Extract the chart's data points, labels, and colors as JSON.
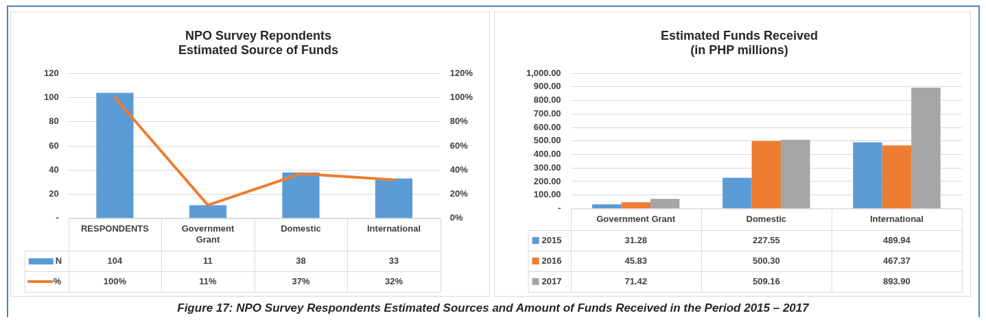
{
  "chart_data": [
    {
      "type": "bar",
      "title": "NPO Survey Repondents\nEstimated Source of Funds",
      "categories": [
        "RESPONDENTS",
        "Government Grant",
        "Domestic",
        "International"
      ],
      "series": [
        {
          "name": "N",
          "color": "#5b9bd5",
          "values": [
            104,
            11,
            38,
            33
          ],
          "value_labels": [
            "104",
            "11",
            "38",
            "33"
          ]
        },
        {
          "name": "%",
          "type": "line",
          "axis": "y2",
          "color": "#ed7d31",
          "values": [
            100,
            11,
            37,
            32
          ],
          "value_labels": [
            "100%",
            "11%",
            "37%",
            "32%"
          ]
        }
      ],
      "ylim": [
        0,
        120
      ],
      "yticks": [
        {
          "value": 0,
          "label": "-"
        },
        20,
        40,
        60,
        80,
        100,
        120
      ],
      "y2lim": [
        0,
        120
      ],
      "y2ticks": [
        {
          "value": 0,
          "label": "0%"
        },
        {
          "value": 20,
          "label": "20%"
        },
        {
          "value": 40,
          "label": "40%"
        },
        {
          "value": 60,
          "label": "60%"
        },
        {
          "value": 80,
          "label": "80%"
        },
        {
          "value": 100,
          "label": "100%"
        },
        {
          "value": 120,
          "label": "120%"
        }
      ],
      "grid": "y",
      "legend": "bottom",
      "marker": "none",
      "line_style": "solid",
      "annotations": [
        "Figure 17: NPO Survey Respondents Estimated Sources and Amount of Funds Received in the Period 2015 – 2017"
      ]
    },
    {
      "type": "bar",
      "title": "Estimated Funds Received\n(in PHP millions)",
      "categories": [
        "Government Grant",
        "Domestic",
        "International"
      ],
      "series": [
        {
          "name": "2015",
          "color": "#5b9bd5",
          "values": [
            31.28,
            227.55,
            489.94
          ],
          "value_labels": [
            "31.28",
            "227.55",
            "489.94"
          ]
        },
        {
          "name": "2016",
          "color": "#ed7d31",
          "values": [
            45.83,
            500.3,
            467.37
          ],
          "value_labels": [
            "45.83",
            "500.30",
            "467.37"
          ]
        },
        {
          "name": "2017",
          "color": "#a5a5a5",
          "values": [
            71.42,
            509.16,
            893.9
          ],
          "value_labels": [
            "71.42",
            "509.16",
            "893.90"
          ]
        }
      ],
      "ylim": [
        0,
        1000
      ],
      "yticks": [
        {
          "value": 0,
          "label": "-"
        },
        {
          "value": 100,
          "label": "100.00"
        },
        {
          "value": 200,
          "label": "200.00"
        },
        {
          "value": 300,
          "label": "300.00"
        },
        {
          "value": 400,
          "label": "400.00"
        },
        {
          "value": 500,
          "label": "500.00"
        },
        {
          "value": 600,
          "label": "600.00"
        },
        {
          "value": 700,
          "label": "700.00"
        },
        {
          "value": 800,
          "label": "800.00"
        },
        {
          "value": 900,
          "label": "900.00"
        },
        {
          "value": 1000,
          "label": "1,000.00"
        }
      ],
      "grid": "y",
      "legend": "bottom"
    }
  ]
}
